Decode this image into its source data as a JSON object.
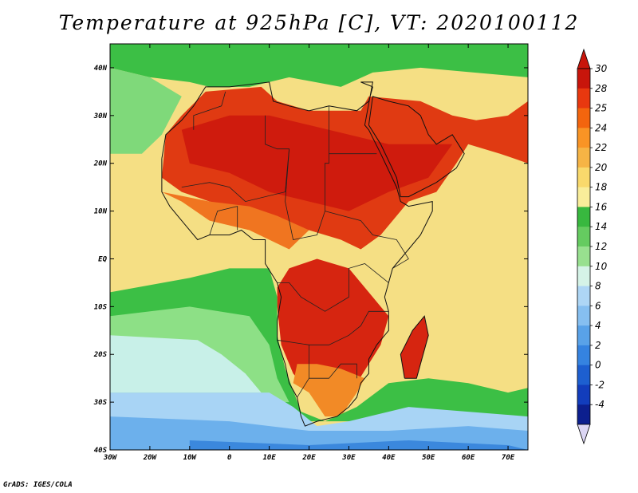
{
  "title": "Temperature at 925hPa [C], VT: 2020100112",
  "credit": "GrADS: IGES/COLA",
  "map": {
    "lon_range": [
      -30,
      75
    ],
    "lat_range": [
      -40,
      45
    ],
    "lat_ticks": [
      {
        "value": 40,
        "label": "40N"
      },
      {
        "value": 30,
        "label": "30N"
      },
      {
        "value": 20,
        "label": "20N"
      },
      {
        "value": 10,
        "label": "10N"
      },
      {
        "value": 0,
        "label": "EQ"
      },
      {
        "value": -10,
        "label": "10S"
      },
      {
        "value": -20,
        "label": "20S"
      },
      {
        "value": -30,
        "label": "30S"
      },
      {
        "value": -40,
        "label": "40S"
      }
    ],
    "lon_ticks": [
      {
        "value": -30,
        "label": "30W"
      },
      {
        "value": -20,
        "label": "20W"
      },
      {
        "value": -10,
        "label": "10W"
      },
      {
        "value": 0,
        "label": "0"
      },
      {
        "value": 10,
        "label": "10E"
      },
      {
        "value": 20,
        "label": "20E"
      },
      {
        "value": 30,
        "label": "30E"
      },
      {
        "value": 40,
        "label": "40E"
      },
      {
        "value": 50,
        "label": "50E"
      },
      {
        "value": 60,
        "label": "60E"
      },
      {
        "value": 70,
        "label": "70E"
      }
    ],
    "ocean_color": "#f5df84",
    "regions": [
      {
        "name": "europe-green",
        "color": "#3cbf45",
        "coords": [
          [
            -12,
            45
          ],
          [
            75,
            45
          ],
          [
            75,
            38
          ],
          [
            48,
            40
          ],
          [
            36,
            39
          ],
          [
            28,
            36
          ],
          [
            15,
            38
          ],
          [
            5,
            36
          ],
          [
            -5,
            36
          ],
          [
            -10,
            37
          ],
          [
            -20,
            38
          ],
          [
            -30,
            40
          ],
          [
            -30,
            45
          ]
        ]
      },
      {
        "name": "north-atlantic-light-green",
        "color": "#7fd97a",
        "coords": [
          [
            -30,
            40
          ],
          [
            -20,
            38
          ],
          [
            -12,
            34
          ],
          [
            -17,
            26
          ],
          [
            -22,
            22
          ],
          [
            -30,
            22
          ]
        ]
      },
      {
        "name": "north-hot-red",
        "color": "#e03a12",
        "coords": [
          [
            -16,
            26
          ],
          [
            -12,
            30
          ],
          [
            -6,
            35
          ],
          [
            8,
            36
          ],
          [
            12,
            33
          ],
          [
            20,
            31
          ],
          [
            28,
            31
          ],
          [
            33,
            31
          ],
          [
            35,
            34
          ],
          [
            48,
            33
          ],
          [
            56,
            30
          ],
          [
            62,
            29
          ],
          [
            70,
            30
          ],
          [
            75,
            33
          ],
          [
            75,
            20
          ],
          [
            68,
            22
          ],
          [
            60,
            24
          ],
          [
            57,
            20
          ],
          [
            52,
            14
          ],
          [
            45,
            12
          ],
          [
            43,
            10
          ],
          [
            38,
            5
          ],
          [
            33,
            2
          ],
          [
            28,
            4
          ],
          [
            20,
            6
          ],
          [
            12,
            8
          ],
          [
            5,
            10
          ],
          [
            -5,
            12
          ],
          [
            -12,
            14
          ],
          [
            -17,
            17
          ]
        ]
      },
      {
        "name": "north-darkest-red",
        "color": "#cf1b0d",
        "coords": [
          [
            -12,
            27
          ],
          [
            0,
            30
          ],
          [
            10,
            30
          ],
          [
            20,
            28
          ],
          [
            30,
            26
          ],
          [
            40,
            24
          ],
          [
            50,
            24
          ],
          [
            56,
            24
          ],
          [
            50,
            17
          ],
          [
            40,
            14
          ],
          [
            30,
            10
          ],
          [
            20,
            12
          ],
          [
            10,
            14
          ],
          [
            0,
            18
          ],
          [
            -10,
            20
          ]
        ]
      },
      {
        "name": "sahel-orange",
        "color": "#f07520",
        "coords": [
          [
            -17,
            14
          ],
          [
            -12,
            12
          ],
          [
            -5,
            8
          ],
          [
            5,
            6
          ],
          [
            10,
            4
          ],
          [
            15,
            2
          ],
          [
            20,
            6
          ],
          [
            12,
            9
          ],
          [
            5,
            11
          ],
          [
            -5,
            12
          ]
        ]
      },
      {
        "name": "south-hot-red",
        "color": "#d62510",
        "coords": [
          [
            12,
            -6
          ],
          [
            15,
            -2
          ],
          [
            22,
            0
          ],
          [
            30,
            -2
          ],
          [
            33,
            -5
          ],
          [
            36,
            -8
          ],
          [
            40,
            -12
          ],
          [
            38,
            -18
          ],
          [
            35,
            -22
          ],
          [
            32,
            -26
          ],
          [
            28,
            -30
          ],
          [
            24,
            -31
          ],
          [
            20,
            -28
          ],
          [
            16,
            -24
          ],
          [
            13,
            -18
          ],
          [
            12,
            -10
          ]
        ]
      },
      {
        "name": "southern-africa-orange",
        "color": "#f28a26",
        "coords": [
          [
            16,
            -26
          ],
          [
            20,
            -28
          ],
          [
            24,
            -33
          ],
          [
            28,
            -33
          ],
          [
            32,
            -28
          ],
          [
            34,
            -25
          ],
          [
            28,
            -23
          ],
          [
            22,
            -22
          ],
          [
            17,
            -22
          ]
        ]
      },
      {
        "name": "south-atlantic-green",
        "color": "#3cbf45",
        "coords": [
          [
            -30,
            -7
          ],
          [
            -10,
            -4
          ],
          [
            0,
            -2
          ],
          [
            10,
            -2
          ],
          [
            12,
            -8
          ],
          [
            12,
            -16
          ],
          [
            14,
            -23
          ],
          [
            18,
            -32
          ],
          [
            24,
            -34
          ],
          [
            32,
            -31
          ],
          [
            40,
            -26
          ],
          [
            50,
            -25
          ],
          [
            60,
            -26
          ],
          [
            70,
            -28
          ],
          [
            75,
            -27
          ],
          [
            75,
            -34
          ],
          [
            -30,
            -34
          ]
        ]
      },
      {
        "name": "south-atlantic-light-green",
        "color": "#8de086",
        "coords": [
          [
            -30,
            -12
          ],
          [
            -10,
            -10
          ],
          [
            5,
            -12
          ],
          [
            10,
            -18
          ],
          [
            12,
            -25
          ],
          [
            15,
            -30
          ],
          [
            -30,
            -30
          ]
        ]
      },
      {
        "name": "south-atlantic-cyan",
        "color": "#c8f0e8",
        "coords": [
          [
            -30,
            -16
          ],
          [
            -8,
            -17
          ],
          [
            -2,
            -20
          ],
          [
            4,
            -24
          ],
          [
            8,
            -28
          ],
          [
            -30,
            -28
          ]
        ]
      },
      {
        "name": "southern-ocean-lightblue",
        "color": "#a8d4f5",
        "coords": [
          [
            -30,
            -28
          ],
          [
            10,
            -28
          ],
          [
            16,
            -31
          ],
          [
            22,
            -35
          ],
          [
            30,
            -34
          ],
          [
            45,
            -31
          ],
          [
            60,
            -32
          ],
          [
            75,
            -33
          ],
          [
            75,
            -40
          ],
          [
            -30,
            -40
          ]
        ]
      },
      {
        "name": "southern-ocean-blue",
        "color": "#6cb0ec",
        "coords": [
          [
            -30,
            -33
          ],
          [
            0,
            -34
          ],
          [
            20,
            -36
          ],
          [
            40,
            -36
          ],
          [
            60,
            -35
          ],
          [
            75,
            -36
          ],
          [
            75,
            -40
          ],
          [
            -30,
            -40
          ]
        ]
      },
      {
        "name": "southern-ocean-deepblue",
        "color": "#3b88dd",
        "coords": [
          [
            -10,
            -38
          ],
          [
            20,
            -39
          ],
          [
            45,
            -38
          ],
          [
            70,
            -39
          ],
          [
            75,
            -40
          ],
          [
            -10,
            -40
          ]
        ]
      },
      {
        "name": "madagascar-red",
        "color": "#d62510",
        "coords": [
          [
            44,
            -25
          ],
          [
            47,
            -25
          ],
          [
            50,
            -16
          ],
          [
            49,
            -12
          ],
          [
            46,
            -15
          ],
          [
            43,
            -20
          ]
        ]
      }
    ],
    "coastline": [
      [
        -17,
        21
      ],
      [
        -16,
        26
      ],
      [
        -12,
        29
      ],
      [
        -9,
        32
      ],
      [
        -6,
        36
      ],
      [
        0,
        36
      ],
      [
        10,
        37
      ],
      [
        11,
        33
      ],
      [
        15,
        32
      ],
      [
        20,
        31
      ],
      [
        25,
        32
      ],
      [
        32,
        31
      ],
      [
        35,
        33
      ],
      [
        36,
        36
      ],
      [
        33,
        37
      ],
      [
        35,
        37
      ],
      [
        36,
        37
      ],
      [
        34,
        28
      ],
      [
        35,
        27
      ],
      [
        38,
        22
      ],
      [
        42,
        15
      ],
      [
        43,
        12
      ],
      [
        45,
        11
      ],
      [
        51,
        12
      ],
      [
        51,
        10
      ],
      [
        48,
        5
      ],
      [
        45,
        2
      ],
      [
        41,
        -2
      ],
      [
        40,
        -5
      ],
      [
        39,
        -8
      ],
      [
        40,
        -11
      ],
      [
        40,
        -15
      ],
      [
        37,
        -18
      ],
      [
        35,
        -21
      ],
      [
        35,
        -24
      ],
      [
        33,
        -26
      ],
      [
        32,
        -29
      ],
      [
        30,
        -31
      ],
      [
        27,
        -33
      ],
      [
        22,
        -34
      ],
      [
        19,
        -35
      ],
      [
        18,
        -33
      ],
      [
        17,
        -29
      ],
      [
        15,
        -26
      ],
      [
        14,
        -22
      ],
      [
        12,
        -17
      ],
      [
        12,
        -13
      ],
      [
        13,
        -8
      ],
      [
        12,
        -5
      ],
      [
        9,
        -1
      ],
      [
        9,
        2
      ],
      [
        9,
        4
      ],
      [
        6,
        4
      ],
      [
        3,
        6
      ],
      [
        0,
        5
      ],
      [
        -5,
        5
      ],
      [
        -8,
        4
      ],
      [
        -11,
        7
      ],
      [
        -13,
        9
      ],
      [
        -15,
        11
      ],
      [
        -17,
        14
      ],
      [
        -17,
        21
      ]
    ],
    "arabia_coast": [
      [
        35,
        28
      ],
      [
        38,
        24
      ],
      [
        42,
        17
      ],
      [
        43,
        13
      ],
      [
        45,
        13
      ],
      [
        52,
        16
      ],
      [
        57,
        19
      ],
      [
        59,
        22
      ],
      [
        56,
        26
      ],
      [
        52,
        24
      ],
      [
        50,
        26
      ],
      [
        48,
        30
      ],
      [
        45,
        32
      ],
      [
        40,
        33
      ],
      [
        36,
        34
      ],
      [
        35,
        28
      ]
    ],
    "madagascar": [
      [
        44,
        -25
      ],
      [
        47,
        -25
      ],
      [
        50,
        -16
      ],
      [
        49,
        -12
      ],
      [
        46,
        -15
      ],
      [
        43,
        -20
      ],
      [
        44,
        -25
      ]
    ],
    "borders": [
      [
        [
          -9,
          27
        ],
        [
          -9,
          30
        ],
        [
          -2,
          32
        ],
        [
          -1,
          35
        ]
      ],
      [
        [
          9,
          30
        ],
        [
          9,
          24
        ],
        [
          12,
          23
        ],
        [
          15,
          23
        ],
        [
          14,
          14
        ],
        [
          4,
          12
        ],
        [
          0,
          15
        ],
        [
          -5,
          16
        ],
        [
          -12,
          15
        ]
      ],
      [
        [
          25,
          32
        ],
        [
          25,
          20
        ],
        [
          24,
          20
        ],
        [
          24,
          10
        ],
        [
          22,
          5
        ],
        [
          16,
          4
        ],
        [
          14,
          12
        ],
        [
          15,
          23
        ]
      ],
      [
        [
          25,
          22
        ],
        [
          37,
          22
        ]
      ],
      [
        [
          24,
          10
        ],
        [
          33,
          8
        ],
        [
          36,
          5
        ],
        [
          42,
          4
        ],
        [
          45,
          0
        ],
        [
          41,
          -2
        ]
      ],
      [
        [
          12,
          -5
        ],
        [
          15,
          -5
        ],
        [
          18,
          -8
        ],
        [
          24,
          -11
        ],
        [
          30,
          -8
        ],
        [
          30,
          -2
        ],
        [
          34,
          -1
        ],
        [
          40,
          -5
        ]
      ],
      [
        [
          12,
          -17
        ],
        [
          20,
          -18
        ],
        [
          25,
          -18
        ],
        [
          30,
          -16
        ],
        [
          33,
          -14
        ],
        [
          35,
          -11
        ],
        [
          40,
          -11
        ]
      ],
      [
        [
          20,
          -18
        ],
        [
          20,
          -25
        ],
        [
          25,
          -25
        ],
        [
          28,
          -22
        ],
        [
          32,
          -22
        ],
        [
          32,
          -25
        ]
      ],
      [
        [
          17,
          -29
        ],
        [
          20,
          -25
        ]
      ],
      [
        [
          -5,
          5
        ],
        [
          -3,
          10
        ],
        [
          2,
          11
        ],
        [
          2,
          6
        ]
      ]
    ]
  },
  "colorbar": {
    "labels": [
      "30",
      "28",
      "25",
      "24",
      "22",
      "20",
      "18",
      "16",
      "14",
      "12",
      "10",
      "8",
      "6",
      "4",
      "2",
      "0",
      "-2",
      "-4"
    ],
    "colors": [
      "#c8150b",
      "#e8380f",
      "#f3650e",
      "#f99425",
      "#f6b445",
      "#f9d96c",
      "#f9ed9a",
      "#38b83f",
      "#65cb60",
      "#98e08f",
      "#d5f3e7",
      "#aed6f5",
      "#86bff0",
      "#59a2e8",
      "#3583e0",
      "#1d5fd0",
      "#123dbc",
      "#0c1f8e"
    ],
    "top_cap_color": "#c8150b",
    "bottom_cap_color": "#dcd6f4"
  }
}
